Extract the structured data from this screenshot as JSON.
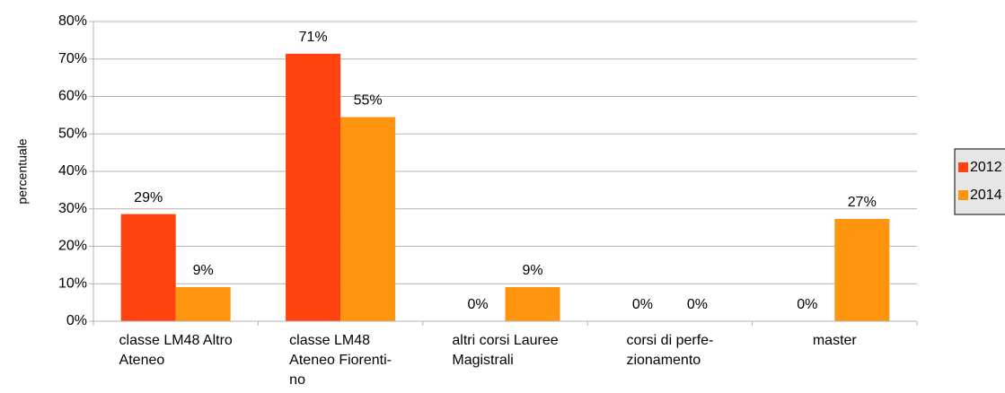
{
  "chart_data": {
    "type": "bar",
    "y_label": "percentuale",
    "categories": [
      "classe LM48 Altro\nAteneo",
      "classe LM48\nAteneo Fiorenti-\nno",
      "altri corsi Lauree\nMagistrali",
      "corsi di perfe-\nzionamento",
      "master"
    ],
    "series": [
      {
        "name": "2012",
        "color": "#ff420e",
        "values": [
          28.6,
          71.4,
          0,
          0,
          0
        ],
        "value_labels": [
          "29%",
          "71%",
          "0%",
          "0%",
          "0%"
        ]
      },
      {
        "name": "2014",
        "color": "#ff950e",
        "values": [
          9.1,
          54.5,
          9.1,
          0,
          27.3
        ],
        "value_labels": [
          "9%",
          "55%",
          "9%",
          "0%",
          "27%"
        ]
      }
    ],
    "ylim": [
      0,
      80
    ],
    "yticks": [
      {
        "value": 0,
        "label": "0%"
      },
      {
        "value": 10,
        "label": "10%"
      },
      {
        "value": 20,
        "label": "20%"
      },
      {
        "value": 30,
        "label": "30%"
      },
      {
        "value": 40,
        "label": "40%"
      },
      {
        "value": 50,
        "label": "50%"
      },
      {
        "value": 60,
        "label": "60%"
      },
      {
        "value": 70,
        "label": "70%"
      },
      {
        "value": 80,
        "label": "80%"
      }
    ],
    "grid": true,
    "legend": "right"
  }
}
